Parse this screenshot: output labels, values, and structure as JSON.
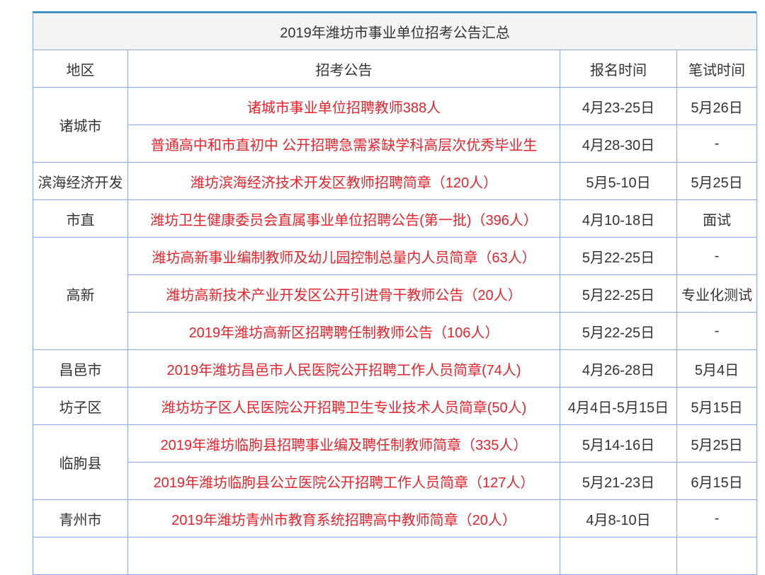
{
  "title": "2019年潍坊市事业单位招考公告汇总",
  "headers": [
    "地区",
    "招考公告",
    "报名时间",
    "笔试时间"
  ],
  "colors": {
    "notice_text": "#e8232c",
    "border": "#8aa6ee",
    "top_border": "#1f86b3",
    "title_bg": "#f4f4f4"
  },
  "groups": [
    {
      "region": "诸城市",
      "rows": [
        {
          "notice": "诸城市事业单位招聘教师388人",
          "signup": "4月23-25日",
          "exam": "5月26日"
        },
        {
          "notice": "普通高中和市直初中 公开招聘急需紧缺学科高层次优秀毕业生",
          "signup": "4月28-30日",
          "exam": "-"
        }
      ]
    },
    {
      "region": "滨海经济开发",
      "rows": [
        {
          "notice": "潍坊滨海经济技术开发区教师招聘简章（120人）",
          "signup": "5月5-10日",
          "exam": "5月25日"
        }
      ]
    },
    {
      "region": "市直",
      "rows": [
        {
          "notice": "潍坊卫生健康委员会直属事业单位招聘公告(第一批)（396人）",
          "signup": "4月10-18日",
          "exam": "面试"
        }
      ]
    },
    {
      "region": "高新",
      "rows": [
        {
          "notice": "潍坊高新事业编制教师及幼儿园控制总量内人员简章（63人）",
          "signup": "5月22-25日",
          "exam": "-"
        },
        {
          "notice": "潍坊高新技术产业开发区公开引进骨干教师公告（20人）",
          "signup": "5月22-25日",
          "exam": "专业化测试"
        },
        {
          "notice": "2019年潍坊高新区招聘聘任制教师公告（106人）",
          "signup": "5月22-25日",
          "exam": "-"
        }
      ]
    },
    {
      "region": "昌邑市",
      "rows": [
        {
          "notice": "2019年潍坊昌邑市人民医院公开招聘工作人员简章(74人)",
          "signup": "4月26-28日",
          "exam": "5月4日"
        }
      ]
    },
    {
      "region": "坊子区",
      "rows": [
        {
          "notice": "潍坊坊子区人民医院公开招聘卫生专业技术人员简章(50人)",
          "signup": "4月4日-5月15日",
          "exam": "5月15日"
        }
      ]
    },
    {
      "region": "临朐县",
      "rows": [
        {
          "notice": "2019年潍坊临朐县招聘事业编及聘任制教师简章（335人）",
          "signup": "5月14-16日",
          "exam": "5月25日"
        },
        {
          "notice": "2019年潍坊临朐县公立医院公开招聘工作人员简章（127人）",
          "signup": "5月21-23日",
          "exam": "6月15日"
        }
      ]
    },
    {
      "region": "青州市",
      "rows": [
        {
          "notice": "2019年潍坊青州市教育系统招聘高中教师简章（20人）",
          "signup": "4月8-10日",
          "exam": "-"
        }
      ]
    }
  ]
}
